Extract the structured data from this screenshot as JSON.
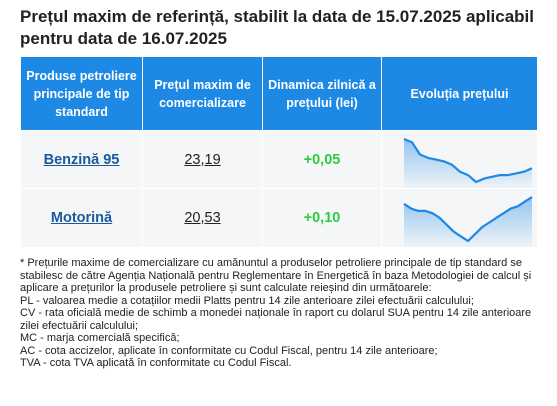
{
  "title": "Prețul maxim de referință, stabilit la data de 15.07.2025 aplicabil pentru data de 16.07.2025",
  "table": {
    "headers": [
      "Produse petroliere principale de tip standard",
      "Prețul maxim de comercializare",
      "Dinamica zilnică a prețului (lei)",
      "Evoluția prețului"
    ],
    "rows": [
      {
        "product": "Benzină 95",
        "price": "23,19",
        "dynamic": "+0,05",
        "trend": [
          28.0,
          27.8,
          27.1,
          26.9,
          26.8,
          26.7,
          26.5,
          26.1,
          25.9,
          25.5,
          25.7,
          25.8,
          25.9,
          25.9,
          26.0,
          26.1,
          26.3
        ]
      },
      {
        "product": "Motorină",
        "price": "20,53",
        "dynamic": "+0,10",
        "trend": [
          27.2,
          27.0,
          26.9,
          26.9,
          26.8,
          26.6,
          26.3,
          26.0,
          25.8,
          25.6,
          25.9,
          26.2,
          26.4,
          26.6,
          26.8,
          27.0,
          27.1,
          27.3,
          27.5
        ]
      }
    ]
  },
  "colors": {
    "header_bg": "#1e88e5",
    "sparkline": "#1e88e5",
    "positive": "#2ecc40",
    "link": "#1a5a9c"
  },
  "notes": [
    "* Prețurile maxime de comercializare cu amănuntul a produselor petroliere principale de tip standard se stabilesc de către Agenția Națională pentru Reglementare în Energetică în baza Metodologiei de calcul și aplicare a prețurilor la produsele petroliere și sunt calculate reieșind din următoarele:",
    "PL - valoarea medie a cotațiilor medii Platts pentru 14 zile anterioare zilei efectuării calculului;",
    "CV - rata oficială medie de schimb a monedei naționale în raport cu dolarul SUA pentru 14 zile anterioare zilei efectuării calculului;",
    "MC - marja comercială specifică;",
    "AC - cota accizelor, aplicate în conformitate cu Codul Fiscal, pentru 14 zile anterioare;",
    "TVA - cota TVA aplicată în conformitate cu Codul Fiscal."
  ]
}
